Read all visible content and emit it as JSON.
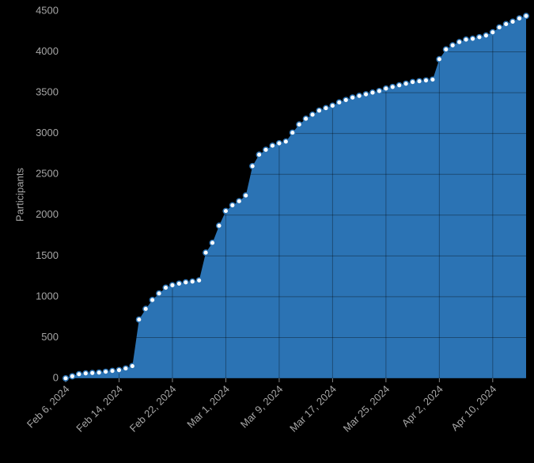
{
  "chart_data": {
    "type": "area",
    "ylabel": "Participants",
    "x": [
      "2024-02-06",
      "2024-02-07",
      "2024-02-08",
      "2024-02-09",
      "2024-02-10",
      "2024-02-11",
      "2024-02-12",
      "2024-02-13",
      "2024-02-14",
      "2024-02-15",
      "2024-02-16",
      "2024-02-17",
      "2024-02-18",
      "2024-02-19",
      "2024-02-20",
      "2024-02-21",
      "2024-02-22",
      "2024-02-23",
      "2024-02-24",
      "2024-02-25",
      "2024-02-26",
      "2024-02-27",
      "2024-02-28",
      "2024-02-29",
      "2024-03-01",
      "2024-03-02",
      "2024-03-03",
      "2024-03-04",
      "2024-03-05",
      "2024-03-06",
      "2024-03-07",
      "2024-03-08",
      "2024-03-09",
      "2024-03-10",
      "2024-03-11",
      "2024-03-12",
      "2024-03-13",
      "2024-03-14",
      "2024-03-15",
      "2024-03-16",
      "2024-03-17",
      "2024-03-18",
      "2024-03-19",
      "2024-03-20",
      "2024-03-21",
      "2024-03-22",
      "2024-03-23",
      "2024-03-24",
      "2024-03-25",
      "2024-03-26",
      "2024-03-27",
      "2024-03-28",
      "2024-03-29",
      "2024-03-30",
      "2024-03-31",
      "2024-04-01",
      "2024-04-02",
      "2024-04-03",
      "2024-04-04",
      "2024-04-05",
      "2024-04-06",
      "2024-04-07",
      "2024-04-08",
      "2024-04-09",
      "2024-04-10",
      "2024-04-11",
      "2024-04-12",
      "2024-04-13",
      "2024-04-14",
      "2024-04-15"
    ],
    "series": [
      {
        "name": "Participants",
        "color": "#2b73b4",
        "values": [
          0,
          25,
          50,
          60,
          65,
          70,
          80,
          90,
          100,
          120,
          150,
          720,
          850,
          960,
          1040,
          1110,
          1140,
          1160,
          1175,
          1185,
          1200,
          1540,
          1660,
          1870,
          2050,
          2120,
          2170,
          2240,
          2600,
          2740,
          2800,
          2850,
          2880,
          2900,
          3010,
          3110,
          3180,
          3230,
          3280,
          3310,
          3340,
          3380,
          3410,
          3440,
          3460,
          3480,
          3500,
          3520,
          3550,
          3570,
          3590,
          3610,
          3630,
          3640,
          3650,
          3660,
          3910,
          4030,
          4080,
          4120,
          4150,
          4160,
          4180,
          4200,
          4240,
          4300,
          4340,
          4370,
          4410,
          4440
        ]
      }
    ],
    "xlim": [
      "2024-02-06",
      "2024-04-15"
    ],
    "xticks": [
      {
        "value": "2024-02-06",
        "label": "Feb 6, 2024"
      },
      {
        "value": "2024-02-14",
        "label": "Feb 14, 2024"
      },
      {
        "value": "2024-02-22",
        "label": "Feb 22, 2024"
      },
      {
        "value": "2024-03-01",
        "label": "Mar 1, 2024"
      },
      {
        "value": "2024-03-09",
        "label": "Mar 9, 2024"
      },
      {
        "value": "2024-03-17",
        "label": "Mar 17, 2024"
      },
      {
        "value": "2024-03-25",
        "label": "Mar 25, 2024"
      },
      {
        "value": "2024-04-02",
        "label": "Apr 2, 2024"
      },
      {
        "value": "2024-04-10",
        "label": "Apr 10, 2024"
      }
    ],
    "ylim": [
      0,
      4500
    ],
    "yticks": [
      0,
      500,
      1000,
      1500,
      2000,
      2500,
      3000,
      3500,
      4000,
      4500
    ],
    "grid": true
  }
}
